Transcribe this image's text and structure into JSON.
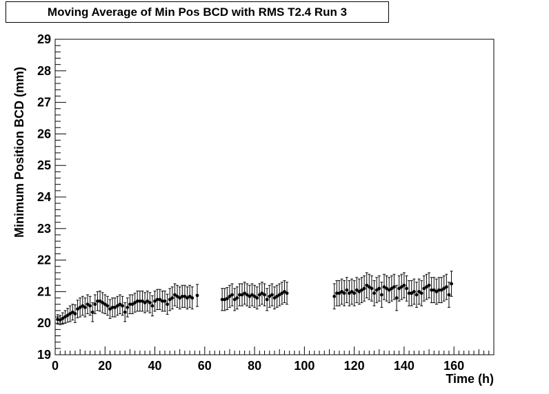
{
  "chart_data": {
    "type": "scatter",
    "title": "Moving Average of Min Pos BCD with RMS T2.4 Run 3",
    "xlabel": "Time (h)",
    "ylabel": "Minimum Position BCD (mm)",
    "xlim": [
      0,
      176
    ],
    "ylim": [
      19,
      29
    ],
    "x_ticks": [
      0,
      20,
      40,
      60,
      80,
      100,
      120,
      140,
      160
    ],
    "y_ticks": [
      19,
      20,
      21,
      22,
      23,
      24,
      25,
      26,
      27,
      28,
      29
    ],
    "grid": false,
    "marker_color": "#000000",
    "series": [
      {
        "points": [
          {
            "x": 1,
            "y": 20.12,
            "err": 0.15
          },
          {
            "x": 2,
            "y": 20.1,
            "err": 0.15
          },
          {
            "x": 3,
            "y": 20.15,
            "err": 0.18
          },
          {
            "x": 4,
            "y": 20.2,
            "err": 0.2
          },
          {
            "x": 5,
            "y": 20.25,
            "err": 0.22
          },
          {
            "x": 6,
            "y": 20.3,
            "err": 0.25
          },
          {
            "x": 7,
            "y": 20.35,
            "err": 0.25
          },
          {
            "x": 8,
            "y": 20.3,
            "err": 0.28
          },
          {
            "x": 9,
            "y": 20.45,
            "err": 0.28
          },
          {
            "x": 10,
            "y": 20.5,
            "err": 0.3
          },
          {
            "x": 11,
            "y": 20.55,
            "err": 0.3
          },
          {
            "x": 12,
            "y": 20.5,
            "err": 0.3
          },
          {
            "x": 13,
            "y": 20.6,
            "err": 0.3
          },
          {
            "x": 14,
            "y": 20.55,
            "err": 0.3
          },
          {
            "x": 15,
            "y": 20.35,
            "err": 0.3
          },
          {
            "x": 16,
            "y": 20.6,
            "err": 0.3
          },
          {
            "x": 17,
            "y": 20.7,
            "err": 0.3
          },
          {
            "x": 18,
            "y": 20.7,
            "err": 0.32
          },
          {
            "x": 19,
            "y": 20.65,
            "err": 0.32
          },
          {
            "x": 20,
            "y": 20.6,
            "err": 0.3
          },
          {
            "x": 21,
            "y": 20.55,
            "err": 0.3
          },
          {
            "x": 22,
            "y": 20.45,
            "err": 0.3
          },
          {
            "x": 23,
            "y": 20.5,
            "err": 0.3
          },
          {
            "x": 24,
            "y": 20.5,
            "err": 0.3
          },
          {
            "x": 25,
            "y": 20.55,
            "err": 0.3
          },
          {
            "x": 26,
            "y": 20.6,
            "err": 0.3
          },
          {
            "x": 27,
            "y": 20.55,
            "err": 0.3
          },
          {
            "x": 28,
            "y": 20.35,
            "err": 0.3
          },
          {
            "x": 29,
            "y": 20.5,
            "err": 0.3
          },
          {
            "x": 30,
            "y": 20.6,
            "err": 0.3
          },
          {
            "x": 31,
            "y": 20.6,
            "err": 0.3
          },
          {
            "x": 32,
            "y": 20.65,
            "err": 0.3
          },
          {
            "x": 33,
            "y": 20.7,
            "err": 0.32
          },
          {
            "x": 34,
            "y": 20.7,
            "err": 0.32
          },
          {
            "x": 35,
            "y": 20.7,
            "err": 0.32
          },
          {
            "x": 36,
            "y": 20.65,
            "err": 0.32
          },
          {
            "x": 37,
            "y": 20.7,
            "err": 0.32
          },
          {
            "x": 38,
            "y": 20.65,
            "err": 0.32
          },
          {
            "x": 39,
            "y": 20.55,
            "err": 0.32
          },
          {
            "x": 40,
            "y": 20.7,
            "err": 0.32
          },
          {
            "x": 41,
            "y": 20.75,
            "err": 0.32
          },
          {
            "x": 42,
            "y": 20.75,
            "err": 0.32
          },
          {
            "x": 43,
            "y": 20.7,
            "err": 0.32
          },
          {
            "x": 44,
            "y": 20.7,
            "err": 0.32
          },
          {
            "x": 45,
            "y": 20.6,
            "err": 0.32
          },
          {
            "x": 46,
            "y": 20.75,
            "err": 0.35
          },
          {
            "x": 47,
            "y": 20.8,
            "err": 0.35
          },
          {
            "x": 48,
            "y": 20.9,
            "err": 0.35
          },
          {
            "x": 49,
            "y": 20.85,
            "err": 0.35
          },
          {
            "x": 50,
            "y": 20.8,
            "err": 0.35
          },
          {
            "x": 51,
            "y": 20.85,
            "err": 0.35
          },
          {
            "x": 52,
            "y": 20.85,
            "err": 0.35
          },
          {
            "x": 53,
            "y": 20.8,
            "err": 0.35
          },
          {
            "x": 54,
            "y": 20.85,
            "err": 0.35
          },
          {
            "x": 55,
            "y": 20.8,
            "err": 0.35
          },
          {
            "x": 57,
            "y": 20.88,
            "err": 0.35
          },
          {
            "x": 67,
            "y": 20.75,
            "err": 0.35
          },
          {
            "x": 68,
            "y": 20.75,
            "err": 0.35
          },
          {
            "x": 69,
            "y": 20.78,
            "err": 0.35
          },
          {
            "x": 70,
            "y": 20.85,
            "err": 0.35
          },
          {
            "x": 71,
            "y": 20.9,
            "err": 0.35
          },
          {
            "x": 72,
            "y": 20.75,
            "err": 0.35
          },
          {
            "x": 73,
            "y": 20.8,
            "err": 0.35
          },
          {
            "x": 74,
            "y": 20.9,
            "err": 0.35
          },
          {
            "x": 75,
            "y": 20.9,
            "err": 0.35
          },
          {
            "x": 76,
            "y": 20.95,
            "err": 0.35
          },
          {
            "x": 77,
            "y": 20.9,
            "err": 0.35
          },
          {
            "x": 78,
            "y": 20.85,
            "err": 0.35
          },
          {
            "x": 79,
            "y": 20.9,
            "err": 0.35
          },
          {
            "x": 80,
            "y": 20.85,
            "err": 0.35
          },
          {
            "x": 81,
            "y": 20.8,
            "err": 0.35
          },
          {
            "x": 82,
            "y": 20.9,
            "err": 0.35
          },
          {
            "x": 83,
            "y": 20.95,
            "err": 0.35
          },
          {
            "x": 84,
            "y": 20.9,
            "err": 0.35
          },
          {
            "x": 85,
            "y": 20.75,
            "err": 0.35
          },
          {
            "x": 86,
            "y": 20.85,
            "err": 0.35
          },
          {
            "x": 87,
            "y": 20.9,
            "err": 0.35
          },
          {
            "x": 88,
            "y": 20.8,
            "err": 0.35
          },
          {
            "x": 89,
            "y": 20.85,
            "err": 0.35
          },
          {
            "x": 90,
            "y": 20.9,
            "err": 0.35
          },
          {
            "x": 91,
            "y": 20.95,
            "err": 0.35
          },
          {
            "x": 92,
            "y": 21.0,
            "err": 0.35
          },
          {
            "x": 93,
            "y": 20.95,
            "err": 0.35
          },
          {
            "x": 112,
            "y": 20.85,
            "err": 0.4
          },
          {
            "x": 113,
            "y": 20.95,
            "err": 0.4
          },
          {
            "x": 114,
            "y": 20.95,
            "err": 0.4
          },
          {
            "x": 115,
            "y": 21.0,
            "err": 0.4
          },
          {
            "x": 116,
            "y": 20.95,
            "err": 0.4
          },
          {
            "x": 117,
            "y": 21.05,
            "err": 0.4
          },
          {
            "x": 118,
            "y": 20.95,
            "err": 0.4
          },
          {
            "x": 119,
            "y": 21.0,
            "err": 0.4
          },
          {
            "x": 120,
            "y": 20.95,
            "err": 0.4
          },
          {
            "x": 121,
            "y": 21.05,
            "err": 0.4
          },
          {
            "x": 122,
            "y": 21.0,
            "err": 0.4
          },
          {
            "x": 123,
            "y": 21.05,
            "err": 0.4
          },
          {
            "x": 124,
            "y": 21.1,
            "err": 0.4
          },
          {
            "x": 125,
            "y": 21.2,
            "err": 0.4
          },
          {
            "x": 126,
            "y": 21.15,
            "err": 0.4
          },
          {
            "x": 127,
            "y": 21.1,
            "err": 0.4
          },
          {
            "x": 128,
            "y": 20.95,
            "err": 0.4
          },
          {
            "x": 129,
            "y": 21.05,
            "err": 0.4
          },
          {
            "x": 130,
            "y": 21.1,
            "err": 0.4
          },
          {
            "x": 131,
            "y": 20.9,
            "err": 0.4
          },
          {
            "x": 132,
            "y": 21.15,
            "err": 0.4
          },
          {
            "x": 133,
            "y": 21.1,
            "err": 0.4
          },
          {
            "x": 134,
            "y": 21.05,
            "err": 0.4
          },
          {
            "x": 135,
            "y": 21.1,
            "err": 0.4
          },
          {
            "x": 136,
            "y": 21.15,
            "err": 0.4
          },
          {
            "x": 137,
            "y": 20.8,
            "err": 0.4
          },
          {
            "x": 138,
            "y": 21.1,
            "err": 0.4
          },
          {
            "x": 139,
            "y": 21.15,
            "err": 0.4
          },
          {
            "x": 140,
            "y": 21.2,
            "err": 0.4
          },
          {
            "x": 141,
            "y": 21.1,
            "err": 0.4
          },
          {
            "x": 142,
            "y": 20.95,
            "err": 0.4
          },
          {
            "x": 143,
            "y": 20.95,
            "err": 0.4
          },
          {
            "x": 144,
            "y": 21.0,
            "err": 0.4
          },
          {
            "x": 145,
            "y": 20.9,
            "err": 0.4
          },
          {
            "x": 146,
            "y": 21.0,
            "err": 0.4
          },
          {
            "x": 147,
            "y": 20.95,
            "err": 0.4
          },
          {
            "x": 148,
            "y": 21.1,
            "err": 0.4
          },
          {
            "x": 149,
            "y": 21.15,
            "err": 0.4
          },
          {
            "x": 150,
            "y": 21.2,
            "err": 0.4
          },
          {
            "x": 151,
            "y": 21.05,
            "err": 0.4
          },
          {
            "x": 152,
            "y": 21.05,
            "err": 0.4
          },
          {
            "x": 153,
            "y": 21.0,
            "err": 0.4
          },
          {
            "x": 154,
            "y": 21.05,
            "err": 0.4
          },
          {
            "x": 155,
            "y": 21.05,
            "err": 0.4
          },
          {
            "x": 156,
            "y": 21.1,
            "err": 0.4
          },
          {
            "x": 157,
            "y": 21.15,
            "err": 0.4
          },
          {
            "x": 158,
            "y": 20.9,
            "err": 0.4
          },
          {
            "x": 159,
            "y": 21.25,
            "err": 0.4
          }
        ]
      }
    ]
  }
}
